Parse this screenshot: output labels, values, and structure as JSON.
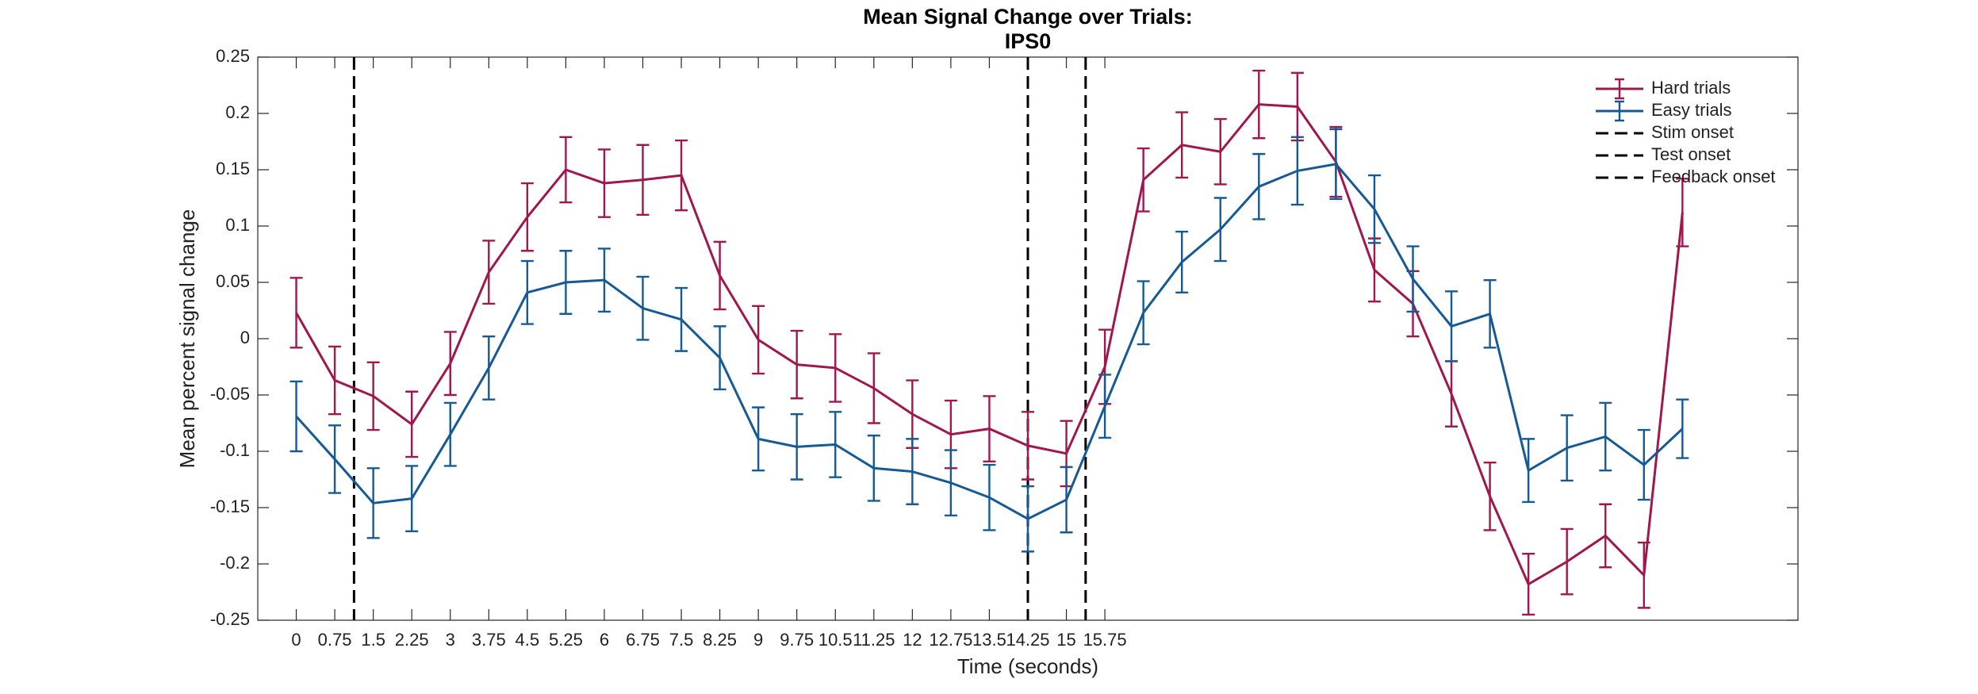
{
  "chart_data": {
    "type": "line",
    "title": "Mean Signal Change over Trials:",
    "subtitle": "IPS0",
    "x_label": "Time (seconds)",
    "y_label": "Mean percent signal change",
    "x": [
      0,
      0.75,
      1.5,
      2.25,
      3,
      3.75,
      4.5,
      5.25,
      6,
      6.75,
      7.5,
      8.25,
      9,
      9.75,
      10.5,
      11.25,
      12,
      12.75,
      13.5,
      14.25,
      15,
      15.75,
      16.5,
      17.25,
      18,
      18.75,
      19.5,
      20.25,
      21,
      21.75,
      22.5,
      23.25,
      24,
      24.75,
      25.5,
      26.25,
      27
    ],
    "series": [
      {
        "name": "Hard trials",
        "color": "#a0174f",
        "values": [
          0.023,
          -0.037,
          -0.051,
          -0.076,
          -0.022,
          0.059,
          0.108,
          0.15,
          0.138,
          0.141,
          0.145,
          0.056,
          -0.001,
          -0.023,
          -0.026,
          -0.044,
          -0.067,
          -0.085,
          -0.08,
          -0.095,
          -0.102,
          -0.025,
          0.141,
          0.172,
          0.166,
          0.208,
          0.206,
          0.157,
          0.061,
          0.031,
          -0.049,
          -0.14,
          -0.218,
          -0.198,
          -0.175,
          -0.21,
          0.112
        ],
        "errors": [
          0.031,
          0.03,
          0.03,
          0.029,
          0.028,
          0.028,
          0.03,
          0.029,
          0.03,
          0.031,
          0.031,
          0.03,
          0.03,
          0.03,
          0.03,
          0.031,
          0.03,
          0.03,
          0.029,
          0.03,
          0.029,
          0.033,
          0.028,
          0.029,
          0.029,
          0.03,
          0.03,
          0.031,
          0.028,
          0.029,
          0.029,
          0.03,
          0.027,
          0.029,
          0.028,
          0.029,
          0.03
        ]
      },
      {
        "name": "Easy trials",
        "color": "#155a95",
        "values": [
          -0.069,
          -0.107,
          -0.146,
          -0.142,
          -0.085,
          -0.026,
          0.041,
          0.05,
          0.052,
          0.027,
          0.017,
          -0.017,
          -0.089,
          -0.096,
          -0.094,
          -0.115,
          -0.118,
          -0.128,
          -0.141,
          -0.16,
          -0.143,
          -0.06,
          0.023,
          0.068,
          0.097,
          0.135,
          0.149,
          0.155,
          0.115,
          0.053,
          0.011,
          0.022,
          -0.117,
          -0.097,
          -0.087,
          -0.112,
          -0.08
        ],
        "errors": [
          0.031,
          0.03,
          0.031,
          0.029,
          0.028,
          0.028,
          0.028,
          0.028,
          0.028,
          0.028,
          0.028,
          0.028,
          0.028,
          0.029,
          0.029,
          0.029,
          0.029,
          0.029,
          0.029,
          0.029,
          0.029,
          0.028,
          0.028,
          0.027,
          0.028,
          0.029,
          0.03,
          0.031,
          0.03,
          0.029,
          0.031,
          0.03,
          0.028,
          0.029,
          0.03,
          0.031,
          0.026
        ]
      }
    ],
    "vlines": [
      {
        "name": "Stim onset",
        "x": 1.125
      },
      {
        "name": "Test onset",
        "x": 14.25
      },
      {
        "name": "Feedback onset",
        "x": 15.375
      }
    ],
    "xlim": [
      -0.75,
      29.25
    ],
    "ylim": [
      -0.25,
      0.25
    ],
    "xticks": [
      0,
      0.75,
      1.5,
      2.25,
      3,
      3.75,
      4.5,
      5.25,
      6,
      6.75,
      7.5,
      8.25,
      9,
      9.75,
      10.5,
      11.25,
      12,
      12.75,
      13.5,
      14.25,
      15,
      15.75
    ],
    "yticks": [
      -0.25,
      -0.2,
      -0.15,
      -0.1,
      -0.05,
      0,
      0.05,
      0.1,
      0.15,
      0.2,
      0.25
    ],
    "legend": "northeast",
    "grid": false
  }
}
